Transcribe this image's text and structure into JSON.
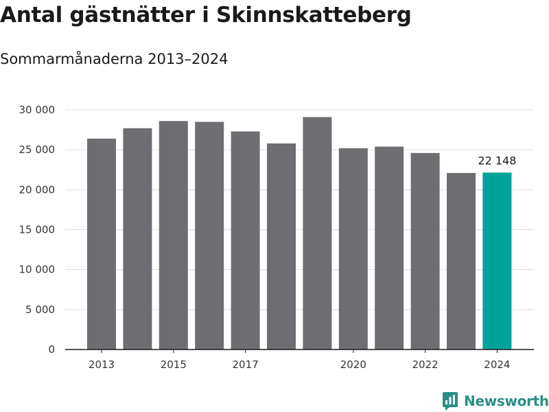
{
  "header": {
    "title": "Antal gästnätter i Skinnskatteberg",
    "subtitle": "Sommarmånaderna 2013–2024"
  },
  "brand": {
    "name": "Newsworthy",
    "icon": "newsworthy-logo-icon",
    "color": "#2a8f84"
  },
  "chart_data": {
    "type": "bar",
    "title": "Antal gästnätter i Skinnskatteberg",
    "subtitle": "Sommarmånaderna 2013–2024",
    "xlabel": "",
    "ylabel": "",
    "categories": [
      "2013",
      "2014",
      "2015",
      "2016",
      "2017",
      "2018",
      "2019",
      "2020",
      "2021",
      "2022",
      "2023",
      "2024"
    ],
    "values": [
      26400,
      27700,
      28600,
      28500,
      27300,
      25800,
      29100,
      25200,
      25400,
      24600,
      22100,
      22148
    ],
    "x_tick_labels": [
      "2013",
      "2015",
      "2017",
      "2020",
      "2022",
      "2024"
    ],
    "y_ticks": [
      0,
      5000,
      10000,
      15000,
      20000,
      25000,
      30000
    ],
    "y_tick_labels": [
      "0",
      "5 000",
      "10 000",
      "15 000",
      "20 000",
      "25 000",
      "30 000"
    ],
    "ylim": [
      0,
      30000
    ],
    "grid": "horizontal",
    "legend": "none",
    "colors": {
      "default": "#6e6d72",
      "highlight": "#00a39a"
    },
    "highlight_index": 11,
    "data_labels": [
      {
        "index": 11,
        "text": "22 148"
      }
    ]
  }
}
